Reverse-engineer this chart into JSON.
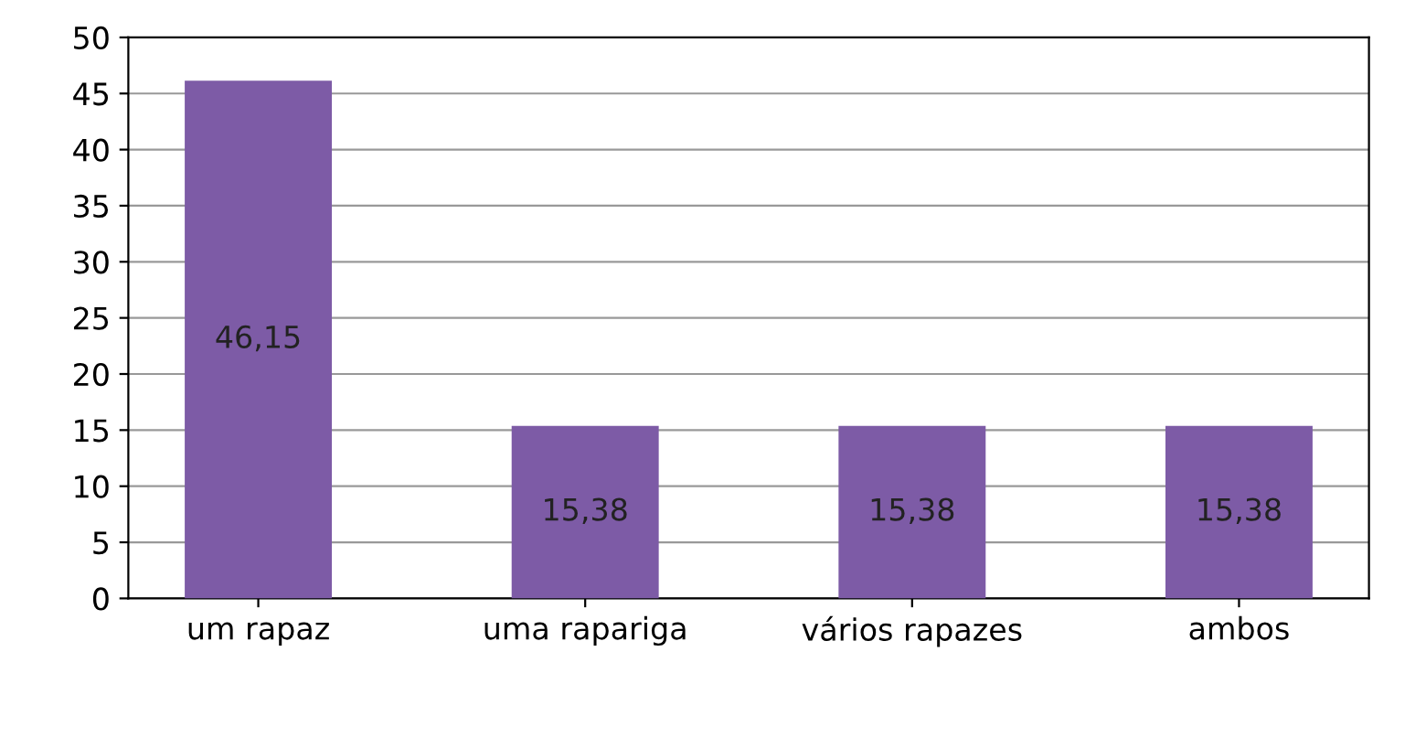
{
  "chart_data": {
    "type": "bar",
    "categories": [
      "um rapaz",
      "uma rapariga",
      "vários rapazes",
      "ambos"
    ],
    "values": [
      46.15,
      15.38,
      15.38,
      15.38
    ],
    "value_labels": [
      "46,15",
      "15,38",
      "15,38",
      "15,38"
    ],
    "color": "#7d5ba6",
    "ylim": [
      0,
      50
    ],
    "yticks": [
      0,
      5,
      10,
      15,
      20,
      25,
      30,
      35,
      40,
      45,
      50
    ],
    "grid": "y",
    "legend": false
  }
}
